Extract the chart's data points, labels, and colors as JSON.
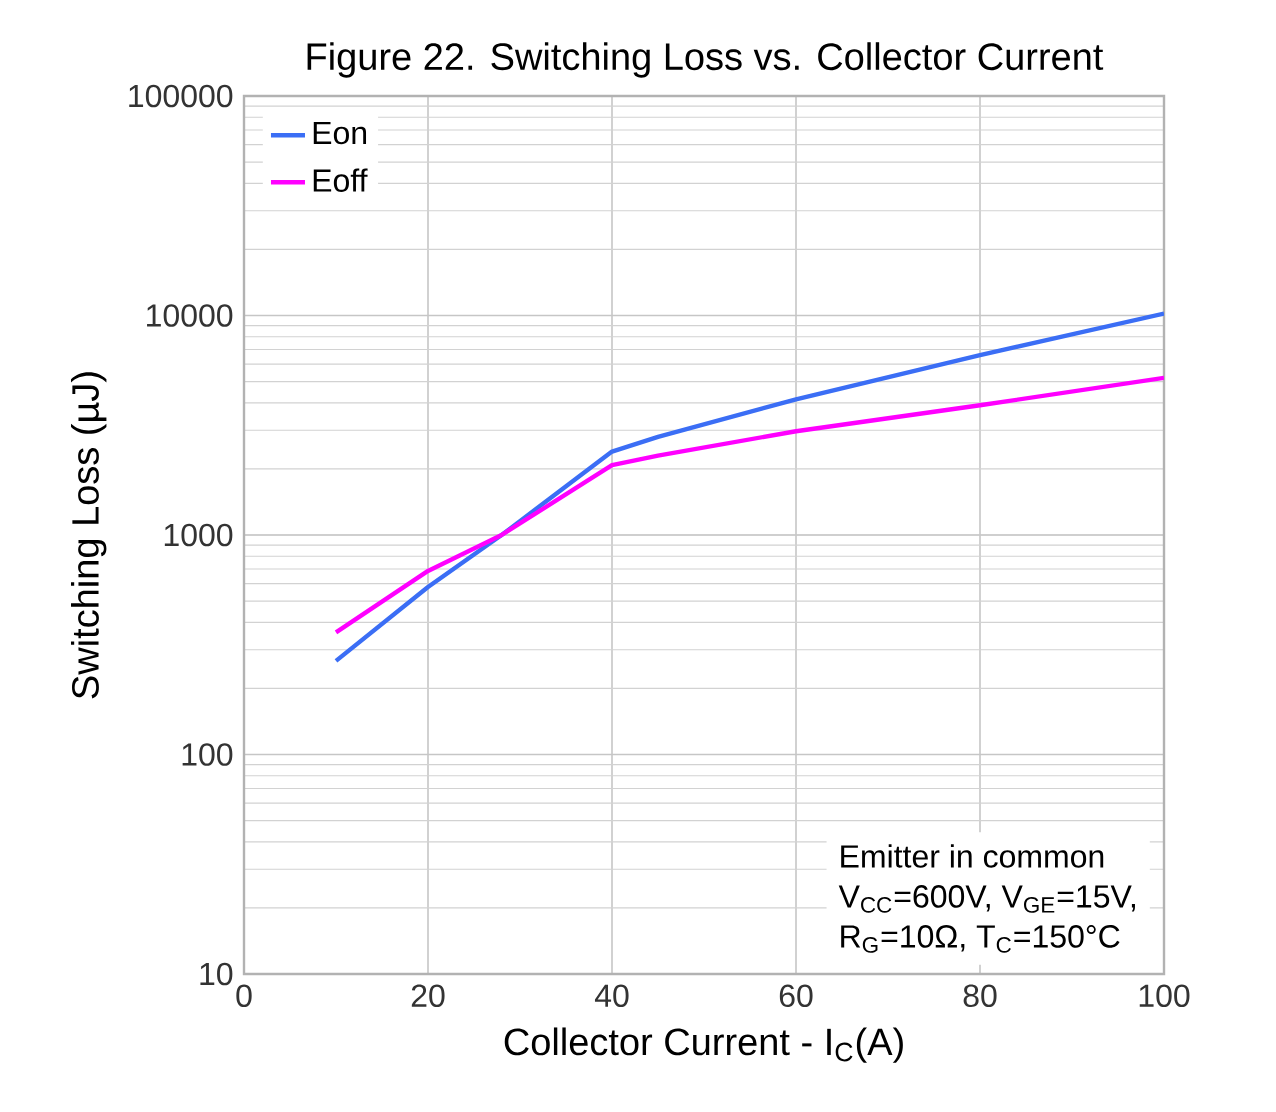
{
  "chart_data": {
    "type": "line",
    "title": "Figure 22. Switching Loss vs. Collector Current",
    "xlabel": "Collector Current - I$_{C}$(A)",
    "ylabel": "Switching Loss (µJ)",
    "series": [
      {
        "name": "Eon",
        "color": "#3b6ef5",
        "x": [
          10,
          20,
          28,
          40,
          45,
          60,
          80,
          100
        ],
        "values": [
          267,
          580,
          1000,
          2400,
          2800,
          4150,
          6600,
          10200
        ]
      },
      {
        "name": "Eoff",
        "color": "#ff00ff",
        "x": [
          10,
          20,
          28,
          40,
          45,
          60,
          80,
          100
        ],
        "values": [
          360,
          686,
          1000,
          2080,
          2300,
          2970,
          3900,
          5200
        ]
      }
    ],
    "xlim": [
      0,
      100
    ],
    "xticks": [
      0,
      20,
      40,
      60,
      80,
      100
    ],
    "ylim": [
      10,
      100000
    ],
    "yticks": [
      10,
      100,
      1000,
      10000,
      100000
    ],
    "log": "y",
    "grid": true,
    "legend": "top left",
    "annotations": [
      "Emitter in common",
      "V$_{CC}$=600V, V$_{GE}$=15V,",
      "R$_{G}$=10Ω, T$_{C}$=150°C"
    ]
  }
}
